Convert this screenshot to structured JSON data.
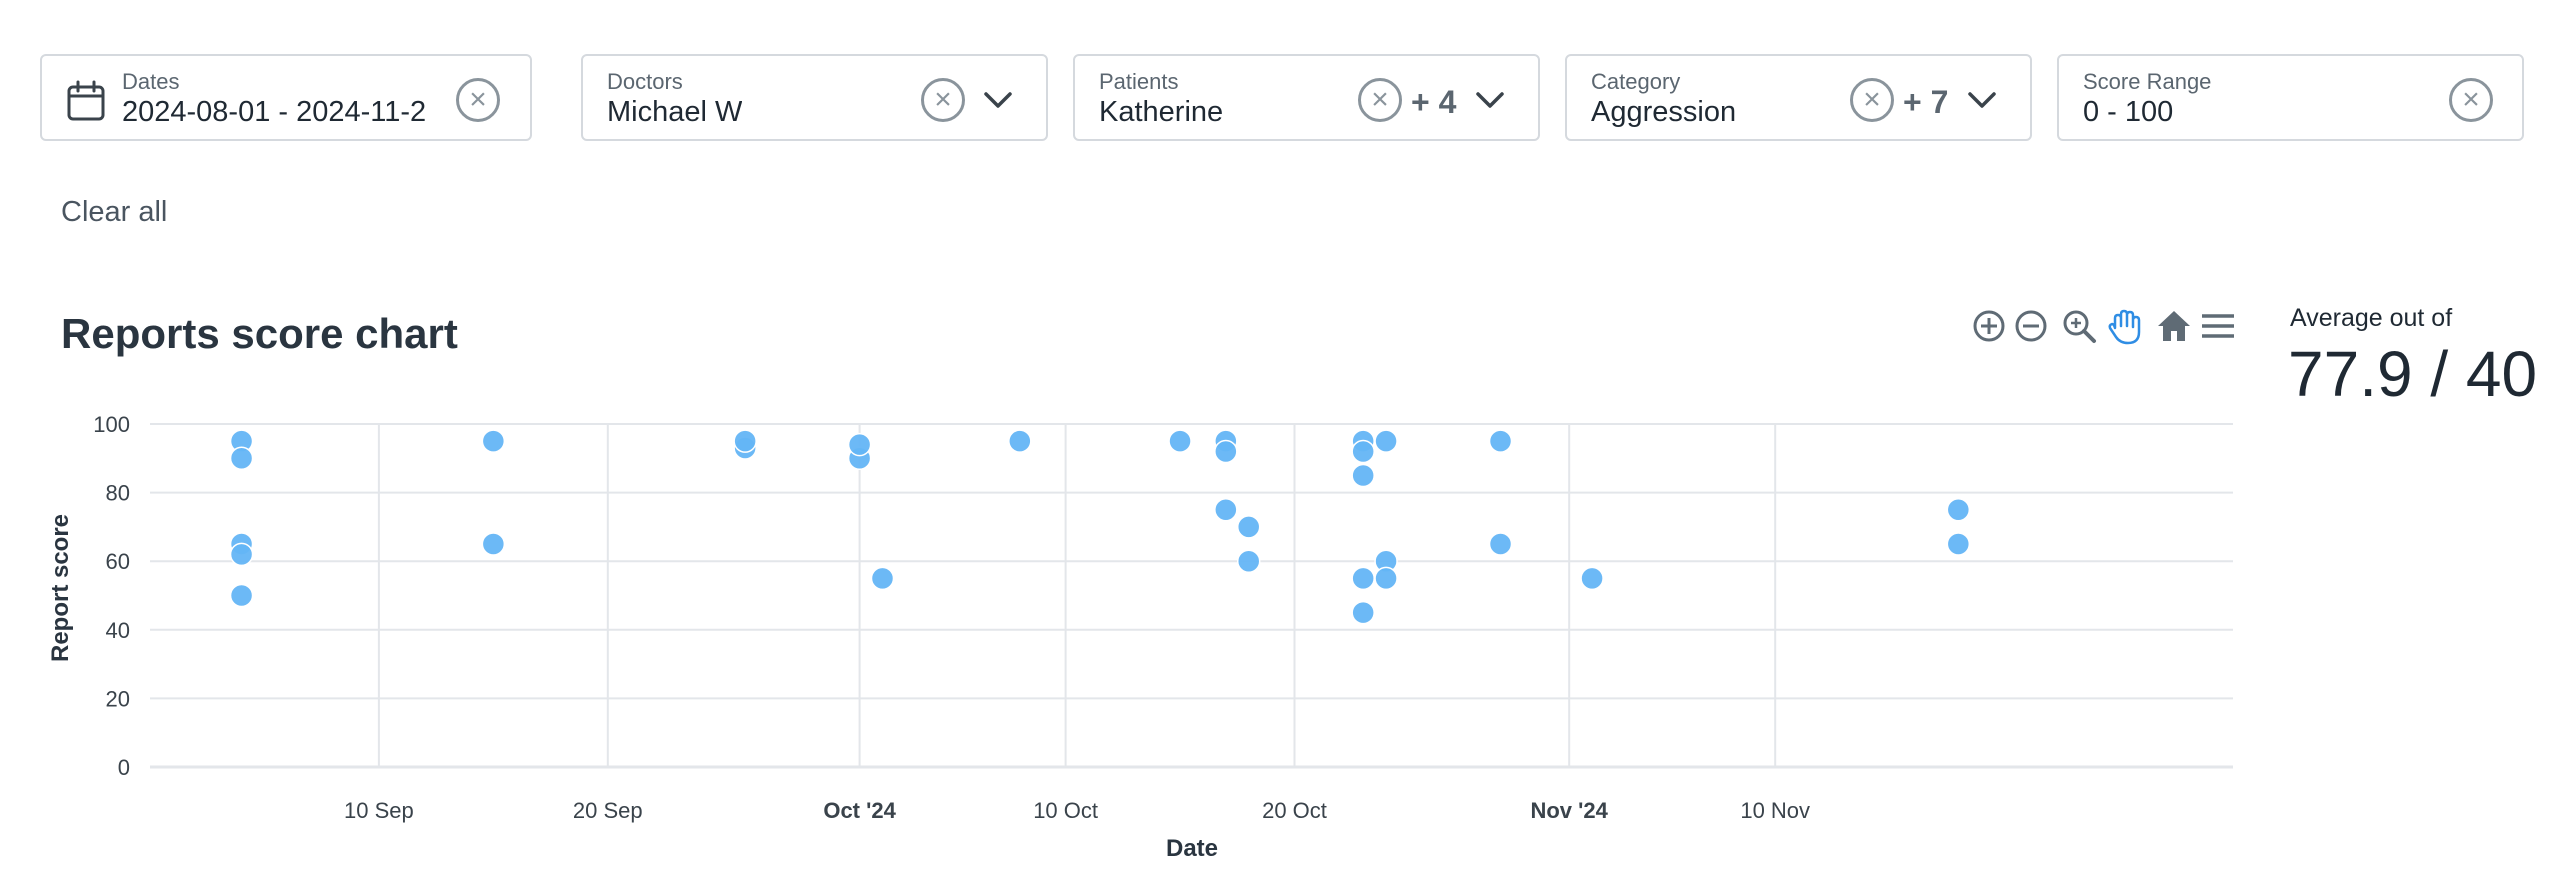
{
  "filters": {
    "dates": {
      "label": "Dates",
      "value": "2024-08-01 - 2024-11-2"
    },
    "doctors": {
      "label": "Doctors",
      "value": "Michael W"
    },
    "patients": {
      "label": "Patients",
      "value": "Katherine",
      "extra": "+ 4"
    },
    "category": {
      "label": "Category",
      "value": "Aggression",
      "extra": "+ 7"
    },
    "score_range": {
      "label": "Score Range",
      "value": "0 - 100"
    },
    "clear_all": "Clear all"
  },
  "chart_header": {
    "title": "Reports score chart",
    "toolbar": [
      "zoom-in-icon",
      "zoom-out-icon",
      "selection-zoom-icon",
      "pan-icon",
      "home-icon",
      "menu-icon"
    ]
  },
  "average": {
    "label": "Average out of",
    "value": "77.9 / 40"
  },
  "colors": {
    "point": "#64b5f6",
    "grid": "#e3e6ea",
    "active_tool": "#2f8de4",
    "tool": "#5f6b75"
  },
  "chart_data": {
    "type": "scatter",
    "xlabel": "Date",
    "ylabel": "Report score",
    "xlim": [
      "2024-08-31",
      "2024-11-30"
    ],
    "ylim": [
      0,
      100
    ],
    "y_ticks": [
      0,
      20,
      40,
      60,
      80,
      100
    ],
    "x_ticks": [
      {
        "date": "2024-09-10",
        "label": "10 Sep",
        "bold": false
      },
      {
        "date": "2024-09-20",
        "label": "20 Sep",
        "bold": false
      },
      {
        "date": "2024-10-01",
        "label": "Oct '24",
        "bold": true
      },
      {
        "date": "2024-10-10",
        "label": "10 Oct",
        "bold": false
      },
      {
        "date": "2024-10-20",
        "label": "20 Oct",
        "bold": false
      },
      {
        "date": "2024-11-01",
        "label": "Nov '24",
        "bold": true
      },
      {
        "date": "2024-11-10",
        "label": "10 Nov",
        "bold": false
      }
    ],
    "grid": true,
    "points": [
      {
        "x": "2024-09-04",
        "y": 95
      },
      {
        "x": "2024-09-04",
        "y": 90
      },
      {
        "x": "2024-09-04",
        "y": 65
      },
      {
        "x": "2024-09-04",
        "y": 62
      },
      {
        "x": "2024-09-04",
        "y": 50
      },
      {
        "x": "2024-09-15",
        "y": 95
      },
      {
        "x": "2024-09-15",
        "y": 65
      },
      {
        "x": "2024-09-26",
        "y": 93
      },
      {
        "x": "2024-09-26",
        "y": 95
      },
      {
        "x": "2024-10-01",
        "y": 90
      },
      {
        "x": "2024-10-01",
        "y": 94
      },
      {
        "x": "2024-10-02",
        "y": 55
      },
      {
        "x": "2024-10-08",
        "y": 95
      },
      {
        "x": "2024-10-15",
        "y": 95
      },
      {
        "x": "2024-10-17",
        "y": 95
      },
      {
        "x": "2024-10-17",
        "y": 92
      },
      {
        "x": "2024-10-17",
        "y": 75
      },
      {
        "x": "2024-10-18",
        "y": 70
      },
      {
        "x": "2024-10-18",
        "y": 60
      },
      {
        "x": "2024-10-23",
        "y": 95
      },
      {
        "x": "2024-10-23",
        "y": 92
      },
      {
        "x": "2024-10-23",
        "y": 85
      },
      {
        "x": "2024-10-23",
        "y": 55
      },
      {
        "x": "2024-10-23",
        "y": 45
      },
      {
        "x": "2024-10-24",
        "y": 95
      },
      {
        "x": "2024-10-24",
        "y": 60
      },
      {
        "x": "2024-10-24",
        "y": 55
      },
      {
        "x": "2024-10-29",
        "y": 95
      },
      {
        "x": "2024-10-29",
        "y": 65
      },
      {
        "x": "2024-11-02",
        "y": 55
      },
      {
        "x": "2024-11-18",
        "y": 75
      },
      {
        "x": "2024-11-18",
        "y": 65
      }
    ]
  }
}
